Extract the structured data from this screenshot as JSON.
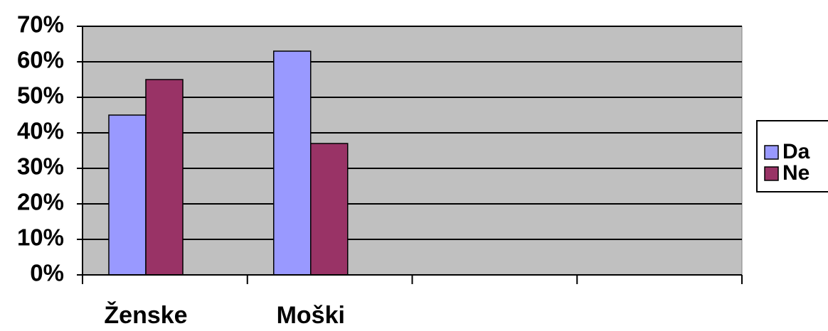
{
  "chart_data": {
    "type": "bar",
    "categories": [
      "Ženske",
      "Moški",
      null,
      null
    ],
    "series": [
      {
        "name": "Da",
        "color": "#9999ff",
        "values": [
          45,
          63,
          null,
          null
        ]
      },
      {
        "name": "Ne",
        "color": "#993366",
        "values": [
          55,
          37,
          null,
          null
        ]
      }
    ],
    "ylim": [
      0,
      70
    ],
    "yticks": [
      {
        "value": 0,
        "label": "0%"
      },
      {
        "value": 10,
        "label": "10%"
      },
      {
        "value": 20,
        "label": "20%"
      },
      {
        "value": 30,
        "label": "30%"
      },
      {
        "value": 40,
        "label": "40%"
      },
      {
        "value": 50,
        "label": "50%"
      },
      {
        "value": 60,
        "label": "60%"
      },
      {
        "value": 70,
        "label": "70%"
      }
    ],
    "grid": true,
    "plot_background": "#c0c0c0",
    "legend": "right"
  }
}
